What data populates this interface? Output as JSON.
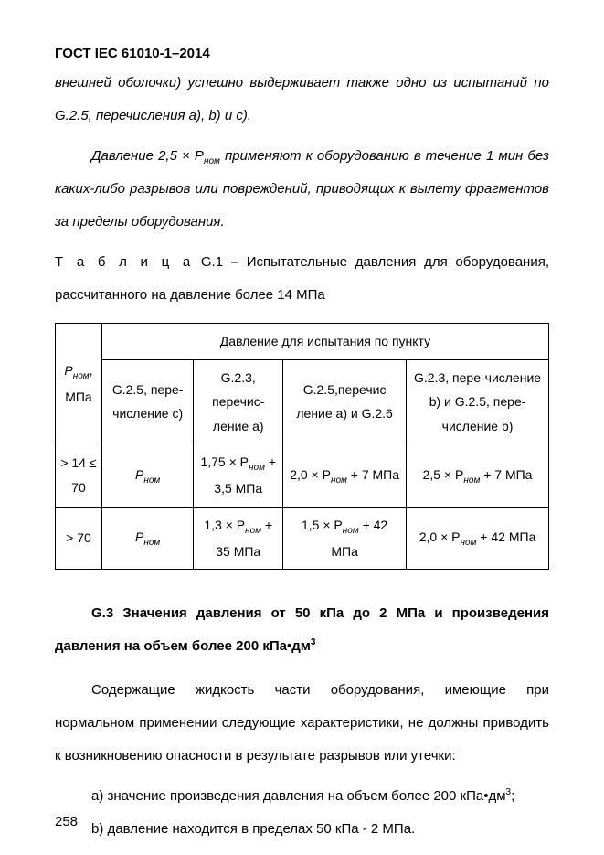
{
  "header": "ГОСТ IEC 61010-1–2014",
  "para1": "внешней оболочки) успешно выдерживает также одно из испытаний по G.2.5, перечисления a), b) и c).",
  "para2_pre": "Давление 2,5 × P",
  "para2_sub": "ном",
  "para2_post": " применяют к оборудованию в течение 1 мин без каких-либо разрывов или повреждений, приводящих к вылету фрагментов за пределы оборудования.",
  "table_caption_label": "Т а б л и ц а",
  "table_caption_rest": "  G.1 – Испытательные давления для оборудования, рассчитанного на давление более 14 МПа",
  "th_merged": "Давление для испытания по пункту",
  "th_col1_pre": "P",
  "th_col1_sub": "ном",
  "th_col1_post": ", МПа",
  "th_col2": "G.2.5, пере-числение c)",
  "th_col3": "G.2.3, перечис-ление a)",
  "th_col4": "G.2.5,перечис ление a) и G.2.6",
  "th_col5": "G.2.3, пере-числение b) и G.2.5, пере-числение b)",
  "r1c1": "> 14 ≤ 70",
  "r1c2_pre": "P",
  "r1c2_sub": "ном",
  "r1c3_pre": "1,75 × P",
  "r1c3_sub": "ном",
  "r1c3_post": " + 3,5 МПа",
  "r1c4_pre": "2,0 × P",
  "r1c4_sub": "ном",
  "r1c4_post": " + 7 МПа",
  "r1c5_pre": "2,5 × P",
  "r1c5_sub": "ном",
  "r1c5_post": " + 7 МПа",
  "r2c1": "> 70",
  "r2c2_pre": "P",
  "r2c2_sub": "ном",
  "r2c3_pre": "1,3 × P",
  "r2c3_sub": "ном",
  "r2c3_post": " + 35 МПа",
  "r2c4_pre": "1,5 × P",
  "r2c4_sub": "ном",
  "r2c4_post": " + 42 МПа",
  "r2c5_pre": "2,0 × P",
  "r2c5_sub": "ном",
  "r2c5_post": " + 42 МПа",
  "sec_heading_pre": "G.3 Значения давления от 50 кПа до 2 МПа и произведения давления на объем более 200 кПа•дм",
  "sec_heading_sup": "3",
  "para3": "Содержащие жидкость части оборудования, имеющие при нормальном применении следующие характеристики, не должны приводить к возникновению опасности в результате разрывов или утечки:",
  "item_a_pre": "a) значение произведения давления на объем более 200 кПа•дм",
  "item_a_sup": "3",
  "item_a_post": ";",
  "item_b": "b) давление находится в пределах 50 кПа - 2 МПа.",
  "page_num": "258"
}
